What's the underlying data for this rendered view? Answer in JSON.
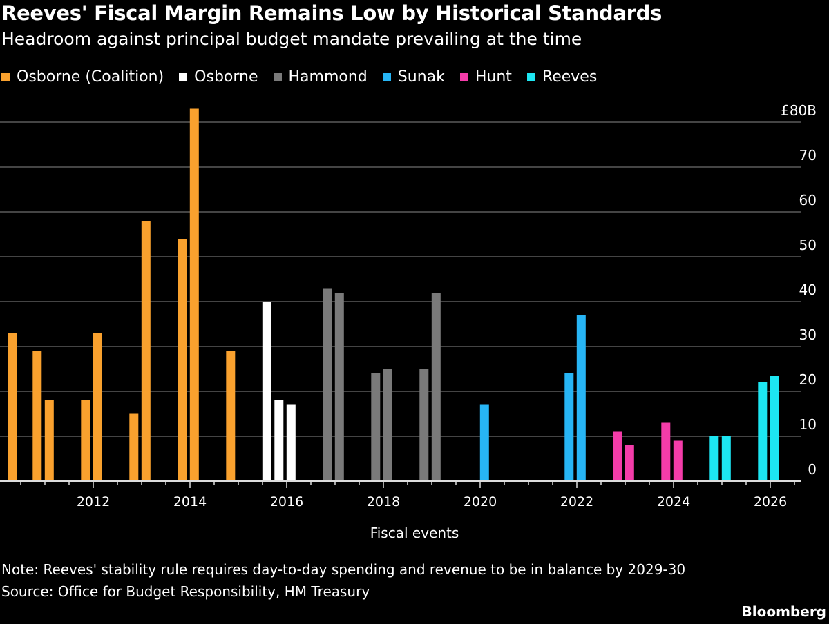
{
  "title": "Reeves' Fiscal Margin Remains Low by Historical Standards",
  "subtitle": "Headroom against principal budget mandate prevailing at the time",
  "note": "Note: Reeves' stability rule requires day-to-day spending and revenue to be in balance by 2029-30",
  "source": "Source: Office for Budget Responsibility, HM Treasury",
  "logo": "Bloomberg",
  "chart_data": {
    "type": "bar",
    "title": "Reeves' Fiscal Margin Remains Low by Historical Standards",
    "xlabel": "Fiscal events",
    "ylabel": "",
    "ylim": [
      0,
      80
    ],
    "xlim": [
      2010.1,
      2026.5
    ],
    "y_ticks": [
      "0",
      "10",
      "20",
      "30",
      "40",
      "50",
      "60",
      "70",
      "£80B"
    ],
    "y_tick_values": [
      0,
      10,
      20,
      30,
      40,
      50,
      60,
      70,
      80
    ],
    "x_ticks": [
      "2012",
      "2014",
      "2016",
      "2018",
      "2020",
      "2022",
      "2024",
      "2026"
    ],
    "grid": true,
    "legend_placement": "top-left",
    "series": [
      {
        "name": "Osborne (Coalition)",
        "color": "#f9a12e",
        "x": [
          2010.33,
          2010.84,
          2011.09,
          2011.84,
          2012.09,
          2012.84,
          2013.09,
          2013.84,
          2014.09,
          2014.84
        ],
        "values": [
          33,
          29,
          18,
          18,
          33,
          15,
          58,
          54,
          83,
          29
        ]
      },
      {
        "name": "Osborne",
        "color": "#ffffff",
        "x": [
          2015.59,
          2015.84,
          2016.09
        ],
        "values": [
          40,
          18,
          17
        ]
      },
      {
        "name": "Hammond",
        "color": "#7a7a7a",
        "x": [
          2016.84,
          2017.09,
          2017.84,
          2018.09,
          2018.84,
          2019.09
        ],
        "values": [
          43,
          42,
          24,
          25,
          25,
          42
        ]
      },
      {
        "name": "Sunak",
        "color": "#27b5f5",
        "x": [
          2020.09,
          2021.84,
          2022.09
        ],
        "values": [
          17,
          24,
          37
        ]
      },
      {
        "name": "Hunt",
        "color": "#f43ca9",
        "x": [
          2022.84,
          2023.09,
          2023.84,
          2024.09
        ],
        "values": [
          11,
          8,
          13,
          9
        ]
      },
      {
        "name": "Reeves",
        "color": "#1de6f2",
        "x": [
          2024.84,
          2025.09,
          2025.84,
          2026.09
        ],
        "values": [
          10,
          10,
          22,
          23.5
        ]
      }
    ]
  }
}
